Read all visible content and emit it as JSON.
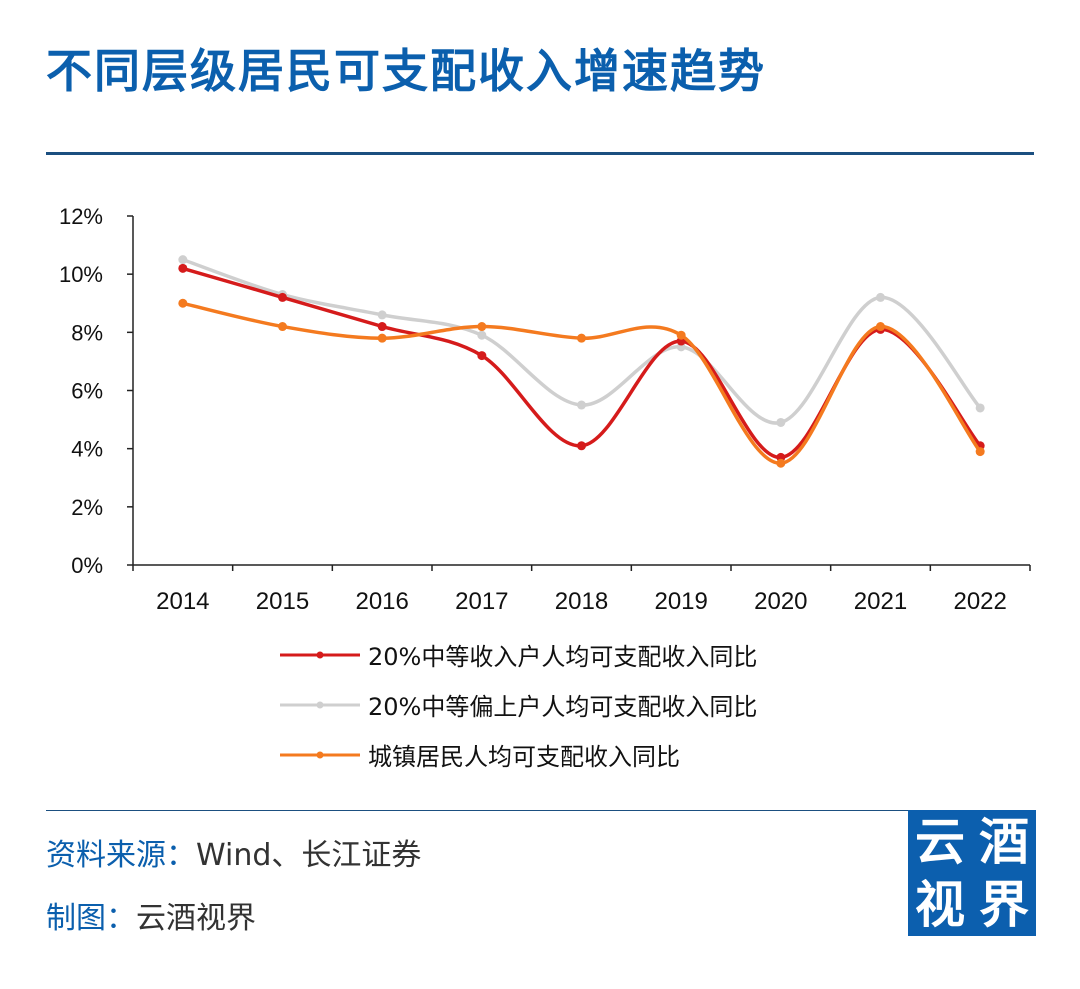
{
  "header": {
    "title": "不同层级居民可支配收入增速趋势"
  },
  "chart_data": {
    "type": "line",
    "categories": [
      "2014",
      "2015",
      "2016",
      "2017",
      "2018",
      "2019",
      "2020",
      "2021",
      "2022"
    ],
    "yticks": [
      "0%",
      "2%",
      "4%",
      "6%",
      "8%",
      "10%",
      "12%"
    ],
    "ylim": [
      0,
      12
    ],
    "series": [
      {
        "name": "20%中等收入户人均可支配收入同比",
        "color": "#d51b1b",
        "values": [
          10.2,
          9.2,
          8.2,
          7.2,
          4.1,
          7.7,
          3.7,
          8.1,
          4.1
        ]
      },
      {
        "name": "20%中等偏上户人均可支配收入同比",
        "color": "#cfcfcf",
        "values": [
          10.5,
          9.3,
          8.6,
          7.9,
          5.5,
          7.5,
          4.9,
          9.2,
          5.4
        ]
      },
      {
        "name": "城镇居民人均可支配收入同比",
        "color": "#f47a1f",
        "values": [
          9.0,
          8.2,
          7.8,
          8.2,
          7.8,
          7.9,
          3.5,
          8.2,
          3.9
        ]
      }
    ]
  },
  "footer": {
    "source_label": "资料来源：",
    "source_value": "Wind、长江证券",
    "maker_label": "制图：",
    "maker_value": "云酒视界"
  },
  "logo": {
    "chars": [
      "云",
      "酒",
      "视",
      "界"
    ]
  },
  "colors": {
    "title": "#0b5fad",
    "logo_bg": "#0c5fae",
    "rule": "#1b4f80"
  }
}
